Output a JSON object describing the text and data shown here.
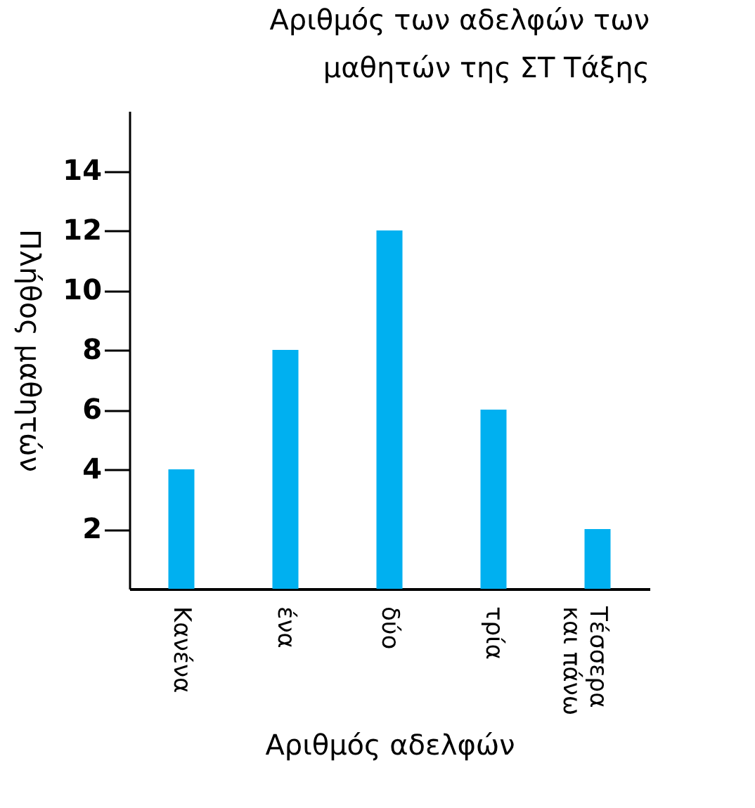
{
  "chart_data": {
    "type": "bar",
    "title": "Αριθμός των αδελφών των μαθητών της ΣΤ Τάξης",
    "xlabel": "Αριθμός αδελφών",
    "ylabel": "Πλήθος μαθητών",
    "categories": [
      "Κανένα",
      "ένα",
      "δύο",
      "τρία",
      "Τέσσερα και πάνω"
    ],
    "values": [
      4,
      8,
      12,
      6,
      2
    ],
    "color": "#00b0f0",
    "ylim": [
      0,
      16
    ],
    "yticks": [
      2,
      4,
      6,
      8,
      10,
      12,
      14
    ],
    "grid": false
  }
}
